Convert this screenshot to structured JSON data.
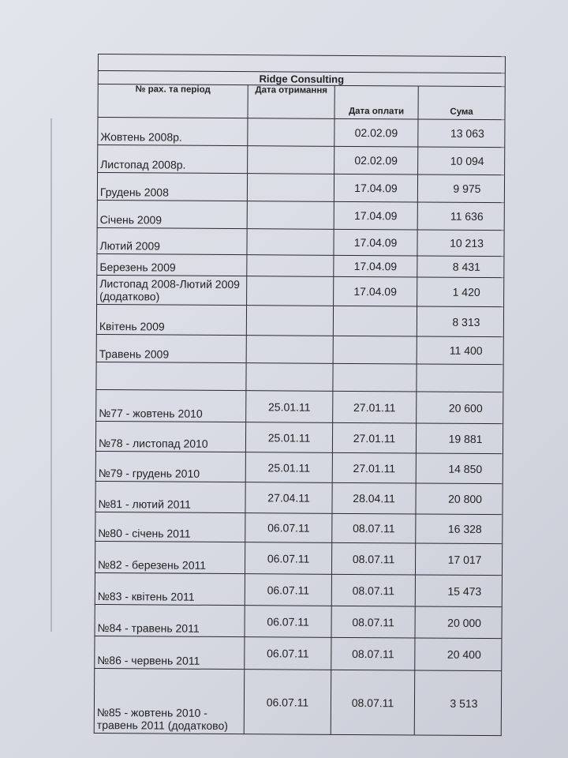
{
  "document": {
    "title": "Ridge Consulting",
    "columns": [
      "№ рах. та період",
      "Дата отримання",
      "Дата оплати",
      "Сума"
    ],
    "rows": [
      {
        "period": "Жовтень 2008р.",
        "received": "",
        "paid": "02.02.09",
        "amount": "13 063"
      },
      {
        "period": "Листопад 2008р.",
        "received": "",
        "paid": "02.02.09",
        "amount": "10 094"
      },
      {
        "period": "Грудень 2008",
        "received": "",
        "paid": "17.04.09",
        "amount": "9 975"
      },
      {
        "period": "Січень 2009",
        "received": "",
        "paid": "17.04.09",
        "amount": "11 636"
      },
      {
        "period": "Лютий 2009",
        "received": "",
        "paid": "17.04.09",
        "amount": "10 213"
      },
      {
        "period": "Березень 2009",
        "received": "",
        "paid": "17.04.09",
        "amount": "8 431"
      },
      {
        "period": "Листопад 2008-Лютий 2009 (додатково)",
        "received": "",
        "paid": "17.04.09",
        "amount": "1 420"
      },
      {
        "period": "Квітень 2009",
        "received": "",
        "paid": "",
        "amount": "8 313"
      },
      {
        "period": "Травень 2009",
        "received": "",
        "paid": "",
        "amount": "11 400"
      },
      {
        "period": "",
        "received": "",
        "paid": "",
        "amount": ""
      },
      {
        "period": "№77 - жовтень 2010",
        "received": "25.01.11",
        "paid": "27.01.11",
        "amount": "20 600"
      },
      {
        "period": "№78 - листопад 2010",
        "received": "25.01.11",
        "paid": "27.01.11",
        "amount": "19 881"
      },
      {
        "period": "№79 - грудень 2010",
        "received": "25.01.11",
        "paid": "27.01.11",
        "amount": "14 850"
      },
      {
        "period": "№81 - лютий 2011",
        "received": "27.04.11",
        "paid": "28.04.11",
        "amount": "20 800"
      },
      {
        "period": "№80 - січень 2011",
        "received": "06.07.11",
        "paid": "08.07.11",
        "amount": "16 328"
      },
      {
        "period": "№82 - березень 2011",
        "received": "06.07.11",
        "paid": "08.07.11",
        "amount": "17 017"
      },
      {
        "period": "№83 - квітень 2011",
        "received": "06.07.11",
        "paid": "08.07.11",
        "amount": "15 473"
      },
      {
        "period": "№84 - травень 2011",
        "received": "06.07.11",
        "paid": "08.07.11",
        "amount": "20 000"
      },
      {
        "period": "№86 - червень 2011",
        "received": "06.07.11",
        "paid": "08.07.11",
        "amount": "20 400"
      },
      {
        "period": "№85 - жовтень 2010 - травень 2011 (додатково)",
        "received": "06.07.11",
        "paid": "08.07.11",
        "amount": "3 513"
      }
    ]
  }
}
